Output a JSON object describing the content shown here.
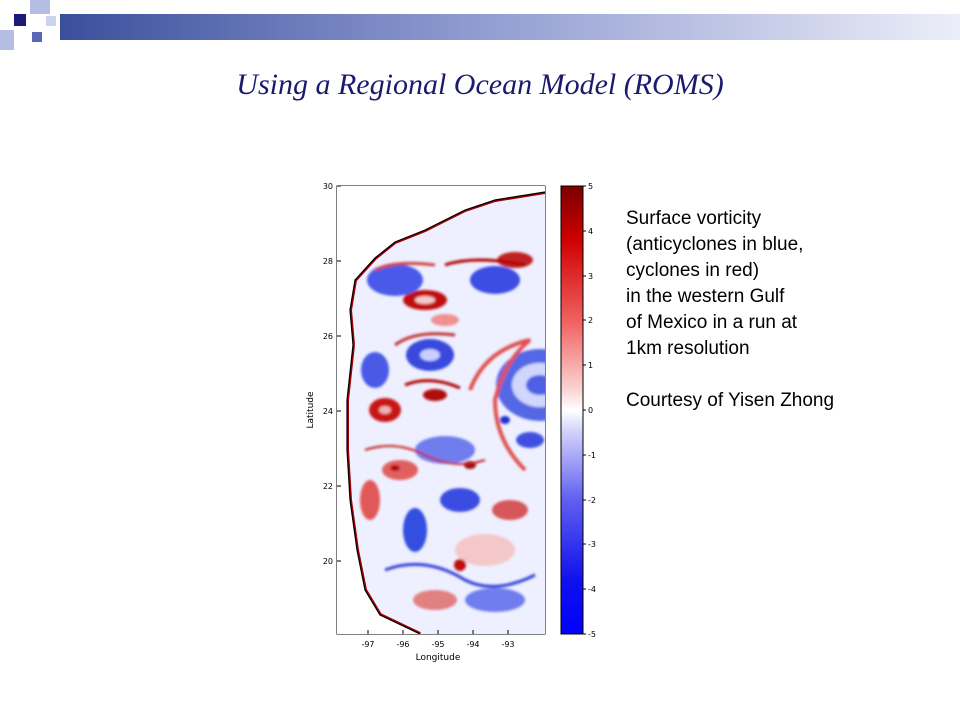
{
  "slide": {
    "title": "Using a Regional Ocean Model (ROMS)",
    "caption_lines": [
      "Surface vorticity",
      "(anticyclones in blue,",
      "cyclones in red)",
      "in the western Gulf",
      "of Mexico in a run at",
      "1km resolution"
    ],
    "credit": "Courtesy of Yisen Zhong"
  },
  "figure": {
    "y_axis_label": "Latitude",
    "x_axis_label": "Longitude",
    "y_ticks": [
      "30",
      "28",
      "26",
      "24",
      "22",
      "20"
    ],
    "x_ticks": [
      "-97",
      "-96",
      "-95",
      "-94",
      "-93"
    ],
    "colorbar_ticks": [
      "5",
      "4",
      "3",
      "2",
      "1",
      "0",
      "-1",
      "-2",
      "-3",
      "-4",
      "-5"
    ],
    "colors": {
      "positive": "#c00000",
      "negative": "#1010ee",
      "land": "#ffffff",
      "coast": "#000000"
    }
  },
  "theme": {
    "title_color": "#1a1a6e",
    "accent_dark": "#1a1a7a",
    "accent_light": "#9aa6d8"
  }
}
